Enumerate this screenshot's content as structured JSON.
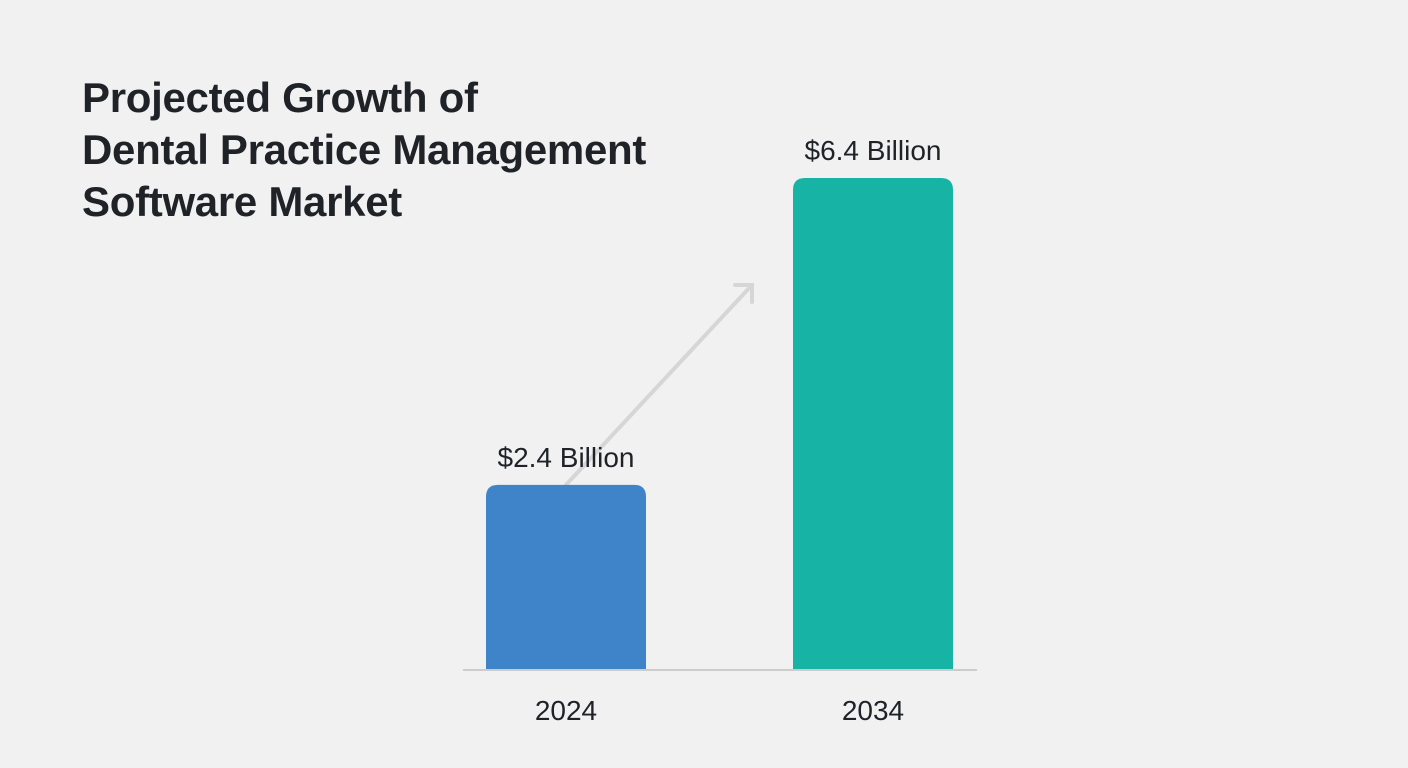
{
  "chart_data": {
    "type": "bar",
    "title": "Projected Growth of\nDental Practice Management\nSoftware Market",
    "categories": [
      "2024",
      "2034"
    ],
    "values": [
      2.4,
      6.4
    ],
    "data_labels": [
      "$2.4 Billion",
      "$6.4 Billion"
    ],
    "units": "USD billions",
    "ylim": [
      0,
      7
    ],
    "grid": false,
    "colors": [
      "#3f83c8",
      "#17b3a4"
    ],
    "trend_arrow": true,
    "axis_color": "#cccccc"
  }
}
